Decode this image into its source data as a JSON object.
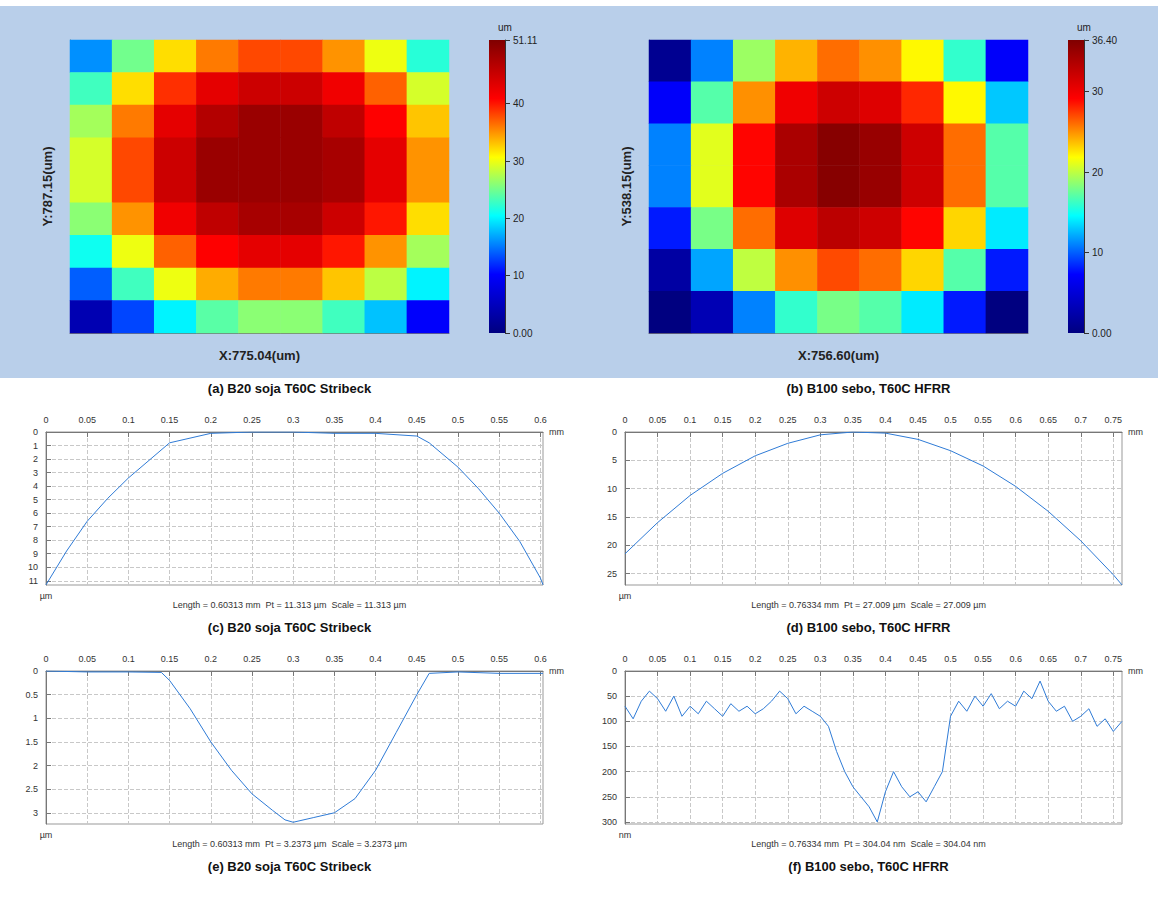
{
  "chart_data": [
    {
      "type": "heatmap",
      "caption": "(a) B20 soja T60C Stribeck",
      "xlabel": "X:775.04(um)",
      "ylabel": "Y:787.15(um)",
      "tick_labels": false,
      "colorbar_label": "um",
      "colorbar_range": [
        0,
        51.11
      ],
      "colorbar_ticks": [
        {
          "value": 0,
          "label": "0.00"
        },
        10,
        20,
        30,
        40,
        {
          "value": 51.11,
          "label": "51.11"
        }
      ],
      "heights": [
        [
          16,
          25,
          32,
          36,
          38,
          38,
          35,
          30,
          22
        ],
        [
          23,
          32,
          39,
          43,
          45,
          45,
          42,
          37,
          29
        ],
        [
          27,
          36,
          43,
          47,
          49,
          49,
          46,
          41,
          33
        ],
        [
          29,
          38,
          45,
          49,
          49,
          49,
          48,
          43,
          35
        ],
        [
          29,
          38,
          45,
          49,
          49,
          49,
          48,
          43,
          35
        ],
        [
          26,
          35,
          42,
          46,
          48,
          48,
          45,
          40,
          32
        ],
        [
          21,
          30,
          37,
          41,
          43,
          43,
          40,
          35,
          27
        ],
        [
          14,
          23,
          30,
          34,
          36,
          36,
          33,
          28,
          20
        ],
        [
          4,
          13,
          20,
          24,
          26,
          26,
          23,
          18,
          10
        ]
      ]
    },
    {
      "type": "heatmap",
      "caption": "(b) B100 sebo, T60C HFRR",
      "xlabel": "X:756.60(um)",
      "ylabel": "Y:538.15(um)",
      "tick_labels": false,
      "colorbar_label": "um",
      "colorbar_range": [
        0,
        36.4
      ],
      "colorbar_ticks": [
        {
          "value": 0,
          "label": "0.00"
        },
        10,
        20,
        30,
        {
          "value": 36.4,
          "label": "36.40"
        }
      ],
      "heights": [
        [
          1,
          11,
          19,
          24,
          26,
          25,
          22,
          16,
          7
        ],
        [
          7,
          17,
          25,
          30,
          32,
          31,
          28,
          22,
          13
        ],
        [
          11,
          21,
          29,
          34,
          36,
          35,
          32,
          26,
          17
        ],
        [
          11,
          21,
          29,
          34,
          36,
          35,
          32,
          26,
          17
        ],
        [
          8,
          18,
          26,
          31,
          33,
          32,
          29,
          23,
          14
        ],
        [
          2,
          12,
          20,
          25,
          27,
          26,
          23,
          17,
          8
        ],
        [
          0,
          3,
          11,
          16,
          18,
          17,
          14,
          8,
          0
        ]
      ]
    },
    {
      "type": "line",
      "caption": "(c) B20 soja T60C Stribeck",
      "annotation": "Length = 0.60313 mm  Pt = 11.313 µm  Scale = 11.313 µm",
      "xlabel": "mm",
      "ylabel": "µm",
      "grid": true,
      "color": "#2f7bd6",
      "xlim": [
        0,
        0.60313
      ],
      "xticks": [
        0,
        0.05,
        0.1,
        0.15,
        0.2,
        0.25,
        0.3,
        0.35,
        0.4,
        0.45,
        0.5,
        0.55,
        0.6
      ],
      "ylim": [
        11.313,
        0
      ],
      "yticks": [
        0,
        1,
        2,
        3,
        4,
        5,
        6,
        7,
        8,
        9,
        10,
        11
      ],
      "x": [
        0,
        0.025,
        0.05,
        0.075,
        0.1,
        0.125,
        0.15,
        0.2,
        0.25,
        0.3,
        0.35,
        0.4,
        0.45,
        0.465,
        0.5,
        0.525,
        0.55,
        0.575,
        0.6,
        0.60313
      ],
      "values": [
        11.3,
        8.8,
        6.6,
        4.9,
        3.4,
        2.1,
        0.8,
        0.1,
        0,
        0,
        0.1,
        0.1,
        0.3,
        0.8,
        2.6,
        4.2,
        6.0,
        8.1,
        10.8,
        11.3
      ]
    },
    {
      "type": "line",
      "caption": "(d) B100 sebo, T60C HFRR",
      "annotation": "Length = 0.76334 mm  Pt = 27.009 µm  Scale = 27.009 µm",
      "xlabel": "mm",
      "ylabel": "µm",
      "grid": true,
      "color": "#2f7bd6",
      "xlim": [
        0,
        0.76334
      ],
      "xticks": [
        0,
        0.05,
        0.1,
        0.15,
        0.2,
        0.25,
        0.3,
        0.35,
        0.4,
        0.45,
        0.5,
        0.55,
        0.6,
        0.65,
        0.7,
        0.75
      ],
      "ylim": [
        27.009,
        0
      ],
      "yticks": [
        0,
        5,
        10,
        15,
        20,
        25
      ],
      "x": [
        0,
        0.05,
        0.1,
        0.15,
        0.2,
        0.25,
        0.3,
        0.35,
        0.4,
        0.45,
        0.5,
        0.55,
        0.6,
        0.65,
        0.7,
        0.75,
        0.76334
      ],
      "values": [
        21.5,
        16.0,
        11.2,
        7.3,
        4.2,
        2.0,
        0.5,
        0,
        0.2,
        1.3,
        3.3,
        6.0,
        9.6,
        14.0,
        19.2,
        25.2,
        27.0
      ]
    },
    {
      "type": "line",
      "caption": "(e) B20 soja T60C Stribeck",
      "annotation": "Length = 0.60313 mm  Pt = 3.2373 µm  Scale = 3.2373 µm",
      "xlabel": "mm",
      "ylabel": "µm",
      "grid": true,
      "color": "#2f7bd6",
      "xlim": [
        0,
        0.60313
      ],
      "xticks": [
        0,
        0.05,
        0.1,
        0.15,
        0.2,
        0.25,
        0.3,
        0.35,
        0.4,
        0.45,
        0.5,
        0.55,
        0.6
      ],
      "ylim": [
        3.2373,
        0
      ],
      "yticks": [
        0,
        0.5,
        1,
        1.5,
        2,
        2.5,
        3
      ],
      "x": [
        0,
        0.05,
        0.1,
        0.14,
        0.15,
        0.175,
        0.2,
        0.225,
        0.25,
        0.275,
        0.29,
        0.3,
        0.325,
        0.35,
        0.375,
        0.4,
        0.425,
        0.45,
        0.465,
        0.5,
        0.55,
        0.6,
        0.60313
      ],
      "values": [
        0,
        0.02,
        0.02,
        0.03,
        0.2,
        0.8,
        1.5,
        2.1,
        2.6,
        2.95,
        3.15,
        3.2,
        3.1,
        3.0,
        2.7,
        2.1,
        1.3,
        0.5,
        0.05,
        0.02,
        0.05,
        0.05,
        0.05
      ]
    },
    {
      "type": "line",
      "caption": "(f) B100 sebo, T60C HFRR",
      "annotation": "Length = 0.76334 mm  Pt = 304.04 nm  Scale = 304.04 nm",
      "xlabel": "mm",
      "ylabel": "nm",
      "grid": true,
      "color": "#2f7bd6",
      "xlim": [
        0,
        0.76334
      ],
      "xticks": [
        0,
        0.05,
        0.1,
        0.15,
        0.2,
        0.25,
        0.3,
        0.35,
        0.4,
        0.45,
        0.5,
        0.55,
        0.6,
        0.65,
        0.7,
        0.75
      ],
      "ylim": [
        304.04,
        0
      ],
      "yticks": [
        0,
        50,
        100,
        150,
        200,
        250,
        300
      ],
      "x": [
        0,
        0.0125,
        0.025,
        0.0375,
        0.05,
        0.0625,
        0.075,
        0.0875,
        0.1,
        0.1125,
        0.125,
        0.1375,
        0.15,
        0.1625,
        0.175,
        0.1875,
        0.2,
        0.2125,
        0.225,
        0.2375,
        0.25,
        0.2625,
        0.275,
        0.2875,
        0.3,
        0.3125,
        0.325,
        0.3375,
        0.35,
        0.3625,
        0.375,
        0.3875,
        0.4,
        0.4125,
        0.425,
        0.4375,
        0.45,
        0.4625,
        0.475,
        0.4875,
        0.5,
        0.5125,
        0.525,
        0.5375,
        0.55,
        0.5625,
        0.575,
        0.5875,
        0.6,
        0.6125,
        0.625,
        0.6375,
        0.65,
        0.6625,
        0.675,
        0.6875,
        0.7,
        0.7125,
        0.725,
        0.7375,
        0.75,
        0.76334
      ],
      "values": [
        70,
        95,
        60,
        40,
        55,
        80,
        50,
        90,
        70,
        85,
        60,
        75,
        90,
        65,
        80,
        70,
        85,
        75,
        60,
        40,
        55,
        85,
        70,
        80,
        90,
        110,
        160,
        200,
        230,
        250,
        270,
        300,
        240,
        200,
        230,
        250,
        240,
        260,
        230,
        200,
        90,
        60,
        80,
        50,
        70,
        45,
        75,
        60,
        70,
        40,
        55,
        20,
        60,
        80,
        70,
        100,
        90,
        75,
        110,
        95,
        120,
        100
      ]
    }
  ]
}
